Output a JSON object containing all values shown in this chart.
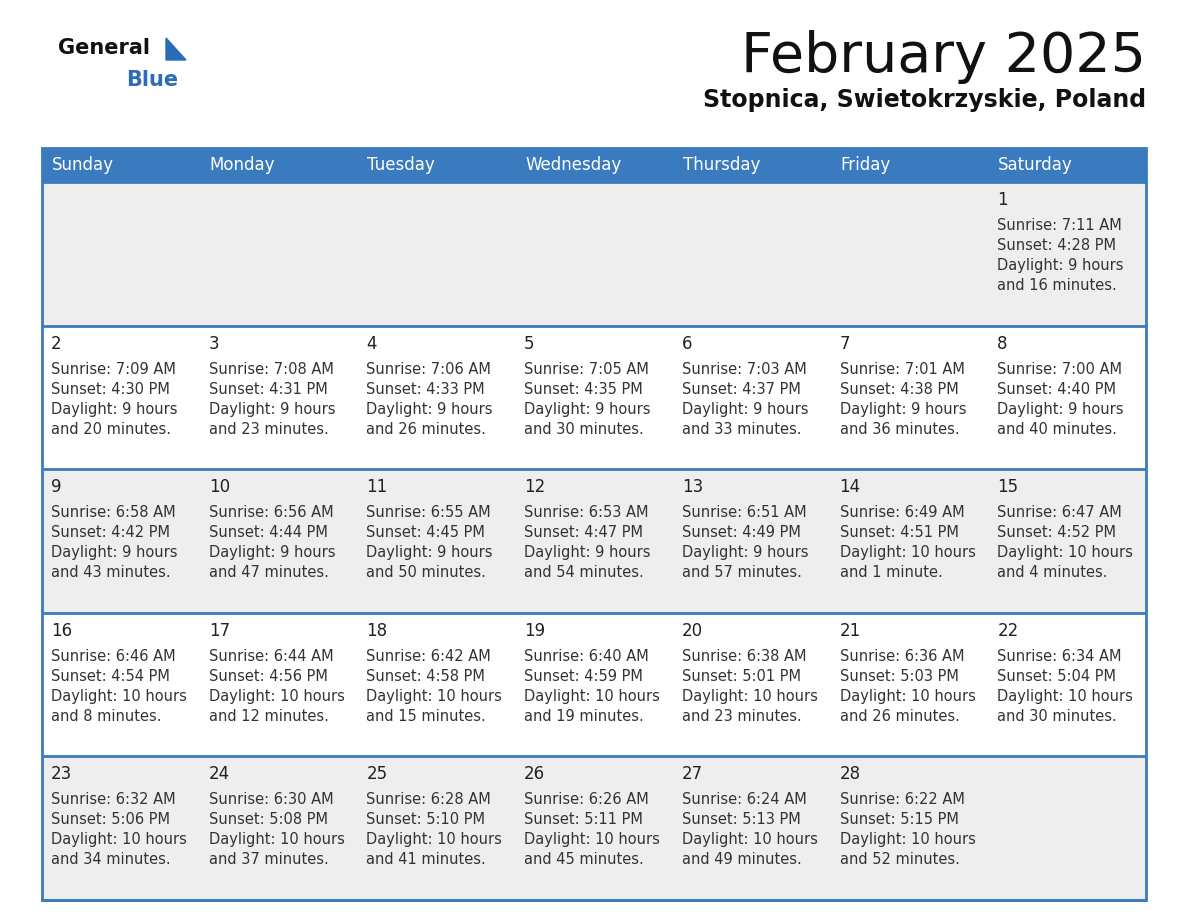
{
  "title": "February 2025",
  "subtitle": "Stopnica, Swietokrzyskie, Poland",
  "days_of_week": [
    "Sunday",
    "Monday",
    "Tuesday",
    "Wednesday",
    "Thursday",
    "Friday",
    "Saturday"
  ],
  "header_bg": "#3a7bbf",
  "header_text_color": "#ffffff",
  "cell_bg_light": "#eeeeee",
  "cell_bg_white": "#ffffff",
  "cell_bg_empty_light": "#eeeeee",
  "cell_bg_empty_white": "#ffffff",
  "row_line_color": "#3a7bbf",
  "outer_border_color": "#3a7bbf",
  "day_number_color": "#222222",
  "info_text_color": "#333333",
  "title_color": "#111111",
  "subtitle_color": "#111111",
  "logo_general_color": "#111111",
  "logo_blue_color": "#2b6cb8",
  "calendar_data": [
    [
      null,
      null,
      null,
      null,
      null,
      null,
      {
        "day": 1,
        "sunrise": "7:11 AM",
        "sunset": "4:28 PM",
        "daylight_line1": "Daylight: 9 hours",
        "daylight_line2": "and 16 minutes."
      }
    ],
    [
      {
        "day": 2,
        "sunrise": "7:09 AM",
        "sunset": "4:30 PM",
        "daylight_line1": "Daylight: 9 hours",
        "daylight_line2": "and 20 minutes."
      },
      {
        "day": 3,
        "sunrise": "7:08 AM",
        "sunset": "4:31 PM",
        "daylight_line1": "Daylight: 9 hours",
        "daylight_line2": "and 23 minutes."
      },
      {
        "day": 4,
        "sunrise": "7:06 AM",
        "sunset": "4:33 PM",
        "daylight_line1": "Daylight: 9 hours",
        "daylight_line2": "and 26 minutes."
      },
      {
        "day": 5,
        "sunrise": "7:05 AM",
        "sunset": "4:35 PM",
        "daylight_line1": "Daylight: 9 hours",
        "daylight_line2": "and 30 minutes."
      },
      {
        "day": 6,
        "sunrise": "7:03 AM",
        "sunset": "4:37 PM",
        "daylight_line1": "Daylight: 9 hours",
        "daylight_line2": "and 33 minutes."
      },
      {
        "day": 7,
        "sunrise": "7:01 AM",
        "sunset": "4:38 PM",
        "daylight_line1": "Daylight: 9 hours",
        "daylight_line2": "and 36 minutes."
      },
      {
        "day": 8,
        "sunrise": "7:00 AM",
        "sunset": "4:40 PM",
        "daylight_line1": "Daylight: 9 hours",
        "daylight_line2": "and 40 minutes."
      }
    ],
    [
      {
        "day": 9,
        "sunrise": "6:58 AM",
        "sunset": "4:42 PM",
        "daylight_line1": "Daylight: 9 hours",
        "daylight_line2": "and 43 minutes."
      },
      {
        "day": 10,
        "sunrise": "6:56 AM",
        "sunset": "4:44 PM",
        "daylight_line1": "Daylight: 9 hours",
        "daylight_line2": "and 47 minutes."
      },
      {
        "day": 11,
        "sunrise": "6:55 AM",
        "sunset": "4:45 PM",
        "daylight_line1": "Daylight: 9 hours",
        "daylight_line2": "and 50 minutes."
      },
      {
        "day": 12,
        "sunrise": "6:53 AM",
        "sunset": "4:47 PM",
        "daylight_line1": "Daylight: 9 hours",
        "daylight_line2": "and 54 minutes."
      },
      {
        "day": 13,
        "sunrise": "6:51 AM",
        "sunset": "4:49 PM",
        "daylight_line1": "Daylight: 9 hours",
        "daylight_line2": "and 57 minutes."
      },
      {
        "day": 14,
        "sunrise": "6:49 AM",
        "sunset": "4:51 PM",
        "daylight_line1": "Daylight: 10 hours",
        "daylight_line2": "and 1 minute."
      },
      {
        "day": 15,
        "sunrise": "6:47 AM",
        "sunset": "4:52 PM",
        "daylight_line1": "Daylight: 10 hours",
        "daylight_line2": "and 4 minutes."
      }
    ],
    [
      {
        "day": 16,
        "sunrise": "6:46 AM",
        "sunset": "4:54 PM",
        "daylight_line1": "Daylight: 10 hours",
        "daylight_line2": "and 8 minutes."
      },
      {
        "day": 17,
        "sunrise": "6:44 AM",
        "sunset": "4:56 PM",
        "daylight_line1": "Daylight: 10 hours",
        "daylight_line2": "and 12 minutes."
      },
      {
        "day": 18,
        "sunrise": "6:42 AM",
        "sunset": "4:58 PM",
        "daylight_line1": "Daylight: 10 hours",
        "daylight_line2": "and 15 minutes."
      },
      {
        "day": 19,
        "sunrise": "6:40 AM",
        "sunset": "4:59 PM",
        "daylight_line1": "Daylight: 10 hours",
        "daylight_line2": "and 19 minutes."
      },
      {
        "day": 20,
        "sunrise": "6:38 AM",
        "sunset": "5:01 PM",
        "daylight_line1": "Daylight: 10 hours",
        "daylight_line2": "and 23 minutes."
      },
      {
        "day": 21,
        "sunrise": "6:36 AM",
        "sunset": "5:03 PM",
        "daylight_line1": "Daylight: 10 hours",
        "daylight_line2": "and 26 minutes."
      },
      {
        "day": 22,
        "sunrise": "6:34 AM",
        "sunset": "5:04 PM",
        "daylight_line1": "Daylight: 10 hours",
        "daylight_line2": "and 30 minutes."
      }
    ],
    [
      {
        "day": 23,
        "sunrise": "6:32 AM",
        "sunset": "5:06 PM",
        "daylight_line1": "Daylight: 10 hours",
        "daylight_line2": "and 34 minutes."
      },
      {
        "day": 24,
        "sunrise": "6:30 AM",
        "sunset": "5:08 PM",
        "daylight_line1": "Daylight: 10 hours",
        "daylight_line2": "and 37 minutes."
      },
      {
        "day": 25,
        "sunrise": "6:28 AM",
        "sunset": "5:10 PM",
        "daylight_line1": "Daylight: 10 hours",
        "daylight_line2": "and 41 minutes."
      },
      {
        "day": 26,
        "sunrise": "6:26 AM",
        "sunset": "5:11 PM",
        "daylight_line1": "Daylight: 10 hours",
        "daylight_line2": "and 45 minutes."
      },
      {
        "day": 27,
        "sunrise": "6:24 AM",
        "sunset": "5:13 PM",
        "daylight_line1": "Daylight: 10 hours",
        "daylight_line2": "and 49 minutes."
      },
      {
        "day": 28,
        "sunrise": "6:22 AM",
        "sunset": "5:15 PM",
        "daylight_line1": "Daylight: 10 hours",
        "daylight_line2": "and 52 minutes."
      },
      null
    ]
  ]
}
